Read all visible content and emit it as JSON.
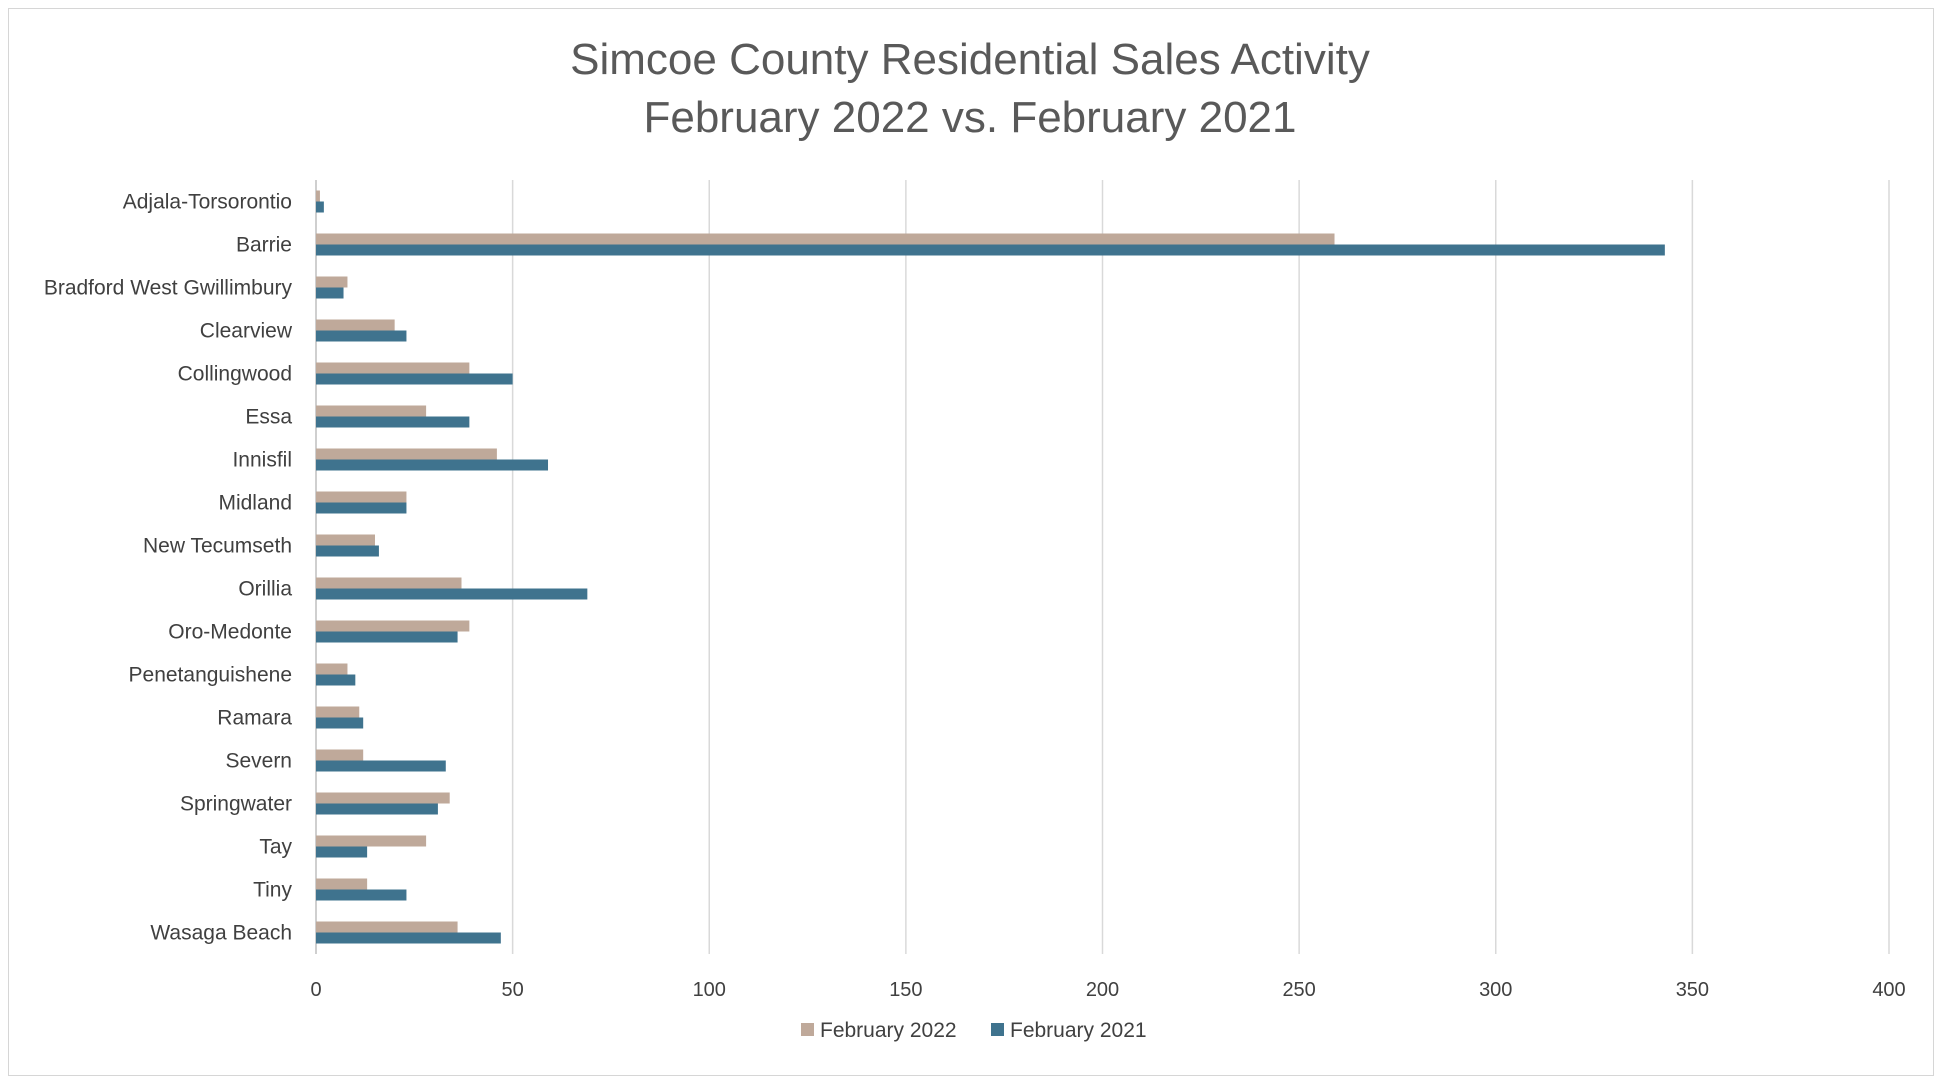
{
  "chart_data": {
    "type": "bar",
    "orientation": "horizontal",
    "title": "Simcoe County Residential Sales Activity",
    "subtitle": "February 2022 vs. February 2021",
    "categories": [
      "Adjala-Torsorontio",
      "Barrie",
      "Bradford West Gwillimbury",
      "Clearview",
      "Collingwood",
      "Essa",
      "Innisfil",
      "Midland",
      "New Tecumseth",
      "Orillia",
      "Oro-Medonte",
      "Penetanguishene",
      "Ramara",
      "Severn",
      "Springwater",
      "Tay",
      "Tiny",
      "Wasaga Beach"
    ],
    "series": [
      {
        "name": "February 2022",
        "color": "#bfa99a",
        "values": [
          1,
          259,
          8,
          20,
          39,
          28,
          46,
          23,
          15,
          37,
          39,
          8,
          11,
          12,
          34,
          28,
          13,
          36
        ]
      },
      {
        "name": "February 2021",
        "color": "#3f738e",
        "values": [
          2,
          343,
          7,
          23,
          50,
          39,
          59,
          23,
          16,
          69,
          36,
          10,
          12,
          33,
          31,
          13,
          23,
          47
        ]
      }
    ],
    "xlim": [
      0,
      400
    ],
    "xticks": [
      "0",
      "50",
      "100",
      "150",
      "200",
      "250",
      "300",
      "350",
      "400"
    ],
    "grid": true,
    "legend_position": "bottom"
  }
}
